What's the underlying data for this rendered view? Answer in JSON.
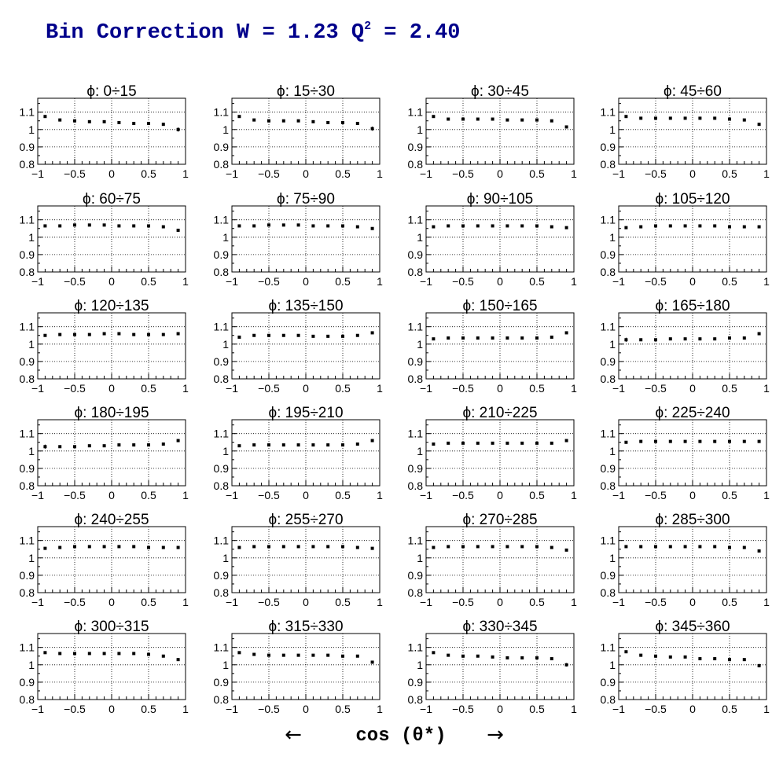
{
  "title": {
    "prefix": "Bin Correction W = 1.23  Q",
    "sup": "2",
    "suffix": " = 2.40"
  },
  "xlabel": {
    "left_arrow": "←",
    "text": "cos (θ*)",
    "right_arrow": "→"
  },
  "colors": {
    "title": "#00008b",
    "markers": "#000000",
    "grid": "#000000",
    "axes": "#000000"
  },
  "chart_data": {
    "type": "scatter",
    "layout": "grid 6 rows x 4 columns",
    "x": [
      -0.9,
      -0.7,
      -0.5,
      -0.3,
      -0.1,
      0.1,
      0.3,
      0.5,
      0.7,
      0.9
    ],
    "xlim": [
      -1,
      1
    ],
    "ylim": [
      0.8,
      1.18
    ],
    "xticks": [
      -1,
      -0.5,
      0,
      0.5,
      1
    ],
    "xtick_labels": [
      "−1",
      "−0.5",
      "0",
      "0.5",
      "1"
    ],
    "yticks": [
      0.8,
      0.9,
      1,
      1.1
    ],
    "ytick_labels": [
      "0.8",
      "0.9",
      "1",
      "1.1"
    ],
    "grid": true,
    "panels": [
      {
        "title": "ϕ:  0÷15",
        "y": [
          1.075,
          1.055,
          1.05,
          1.045,
          1.045,
          1.04,
          1.035,
          1.035,
          1.03,
          1.0
        ],
        "err": [
          0.004,
          0.003,
          0.003,
          0.003,
          0.003,
          0.003,
          0.003,
          0.003,
          0.004,
          0.012
        ]
      },
      {
        "title": "ϕ:  15÷30",
        "y": [
          1.075,
          1.055,
          1.05,
          1.05,
          1.05,
          1.045,
          1.04,
          1.04,
          1.035,
          1.005
        ],
        "err": [
          0.004,
          0.003,
          0.003,
          0.003,
          0.003,
          0.003,
          0.003,
          0.003,
          0.004,
          0.012
        ]
      },
      {
        "title": "ϕ:  30÷45",
        "y": [
          1.075,
          1.06,
          1.06,
          1.06,
          1.06,
          1.055,
          1.055,
          1.055,
          1.05,
          1.015
        ],
        "err": [
          0.004,
          0.003,
          0.003,
          0.003,
          0.003,
          0.003,
          0.003,
          0.003,
          0.004,
          0.008
        ]
      },
      {
        "title": "ϕ:  45÷60",
        "y": [
          1.075,
          1.065,
          1.065,
          1.065,
          1.065,
          1.065,
          1.065,
          1.06,
          1.055,
          1.03
        ],
        "err": [
          0.004,
          0.003,
          0.003,
          0.003,
          0.003,
          0.003,
          0.003,
          0.003,
          0.004,
          0.006
        ]
      },
      {
        "title": "ϕ:  60÷75",
        "y": [
          1.065,
          1.065,
          1.07,
          1.07,
          1.07,
          1.065,
          1.065,
          1.065,
          1.06,
          1.04
        ],
        "err": [
          0.004,
          0.003,
          0.003,
          0.003,
          0.003,
          0.003,
          0.003,
          0.003,
          0.004,
          0.006
        ]
      },
      {
        "title": "ϕ:  75÷90",
        "y": [
          1.065,
          1.065,
          1.07,
          1.07,
          1.07,
          1.065,
          1.065,
          1.065,
          1.06,
          1.05
        ],
        "err": [
          0.004,
          0.003,
          0.003,
          0.003,
          0.003,
          0.003,
          0.003,
          0.003,
          0.004,
          0.006
        ]
      },
      {
        "title": "ϕ:  90÷105",
        "y": [
          1.06,
          1.065,
          1.065,
          1.065,
          1.065,
          1.065,
          1.065,
          1.065,
          1.06,
          1.055
        ],
        "err": [
          0.004,
          0.003,
          0.003,
          0.003,
          0.003,
          0.003,
          0.003,
          0.003,
          0.004,
          0.006
        ]
      },
      {
        "title": "ϕ:  105÷120",
        "y": [
          1.055,
          1.06,
          1.065,
          1.065,
          1.065,
          1.065,
          1.065,
          1.06,
          1.06,
          1.06
        ],
        "err": [
          0.004,
          0.003,
          0.003,
          0.003,
          0.003,
          0.003,
          0.003,
          0.003,
          0.004,
          0.005
        ]
      },
      {
        "title": "ϕ: 120÷135",
        "y": [
          1.05,
          1.055,
          1.055,
          1.055,
          1.06,
          1.06,
          1.055,
          1.055,
          1.055,
          1.06
        ],
        "err": [
          0.004,
          0.003,
          0.003,
          0.003,
          0.003,
          0.003,
          0.003,
          0.003,
          0.004,
          0.005
        ]
      },
      {
        "title": "ϕ: 135÷150",
        "y": [
          1.04,
          1.05,
          1.05,
          1.05,
          1.05,
          1.045,
          1.045,
          1.045,
          1.05,
          1.065
        ],
        "err": [
          0.004,
          0.003,
          0.003,
          0.003,
          0.003,
          0.003,
          0.003,
          0.003,
          0.004,
          0.005
        ]
      },
      {
        "title": "ϕ: 150÷165",
        "y": [
          1.03,
          1.035,
          1.035,
          1.035,
          1.035,
          1.035,
          1.035,
          1.035,
          1.04,
          1.065
        ],
        "err": [
          0.004,
          0.003,
          0.003,
          0.003,
          0.003,
          0.003,
          0.003,
          0.003,
          0.004,
          0.005
        ]
      },
      {
        "title": "ϕ: 165÷180",
        "y": [
          1.025,
          1.025,
          1.025,
          1.03,
          1.03,
          1.03,
          1.03,
          1.035,
          1.035,
          1.06
        ],
        "err": [
          0.012,
          0.003,
          0.003,
          0.003,
          0.003,
          0.003,
          0.003,
          0.003,
          0.004,
          0.005
        ]
      },
      {
        "title": "ϕ: 180÷195",
        "y": [
          1.025,
          1.025,
          1.025,
          1.03,
          1.03,
          1.035,
          1.035,
          1.035,
          1.04,
          1.06
        ],
        "err": [
          0.012,
          0.003,
          0.003,
          0.003,
          0.003,
          0.003,
          0.003,
          0.003,
          0.004,
          0.005
        ]
      },
      {
        "title": "ϕ: 195÷210",
        "y": [
          1.03,
          1.035,
          1.035,
          1.035,
          1.035,
          1.035,
          1.035,
          1.035,
          1.04,
          1.06
        ],
        "err": [
          0.004,
          0.003,
          0.003,
          0.003,
          0.003,
          0.003,
          0.003,
          0.003,
          0.004,
          0.005
        ]
      },
      {
        "title": "ϕ: 210÷225",
        "y": [
          1.04,
          1.045,
          1.045,
          1.045,
          1.045,
          1.045,
          1.045,
          1.045,
          1.045,
          1.06
        ],
        "err": [
          0.004,
          0.003,
          0.003,
          0.003,
          0.003,
          0.003,
          0.003,
          0.003,
          0.004,
          0.005
        ]
      },
      {
        "title": "ϕ: 225÷240",
        "y": [
          1.05,
          1.055,
          1.055,
          1.055,
          1.055,
          1.055,
          1.055,
          1.055,
          1.055,
          1.055
        ],
        "err": [
          0.004,
          0.003,
          0.003,
          0.003,
          0.003,
          0.003,
          0.003,
          0.003,
          0.004,
          0.005
        ]
      },
      {
        "title": "ϕ: 240÷255",
        "y": [
          1.055,
          1.06,
          1.065,
          1.065,
          1.065,
          1.065,
          1.065,
          1.06,
          1.06,
          1.06
        ],
        "err": [
          0.004,
          0.003,
          0.003,
          0.003,
          0.003,
          0.003,
          0.003,
          0.003,
          0.004,
          0.005
        ]
      },
      {
        "title": "ϕ: 255÷270",
        "y": [
          1.06,
          1.065,
          1.065,
          1.065,
          1.065,
          1.065,
          1.065,
          1.065,
          1.06,
          1.055
        ],
        "err": [
          0.004,
          0.003,
          0.003,
          0.003,
          0.003,
          0.003,
          0.003,
          0.003,
          0.004,
          0.005
        ]
      },
      {
        "title": "ϕ: 270÷285",
        "y": [
          1.06,
          1.065,
          1.065,
          1.065,
          1.065,
          1.065,
          1.065,
          1.065,
          1.06,
          1.045
        ],
        "err": [
          0.004,
          0.003,
          0.003,
          0.003,
          0.003,
          0.003,
          0.003,
          0.003,
          0.004,
          0.006
        ]
      },
      {
        "title": "ϕ: 285÷300",
        "y": [
          1.065,
          1.065,
          1.065,
          1.065,
          1.065,
          1.065,
          1.065,
          1.06,
          1.06,
          1.04
        ],
        "err": [
          0.004,
          0.003,
          0.003,
          0.003,
          0.003,
          0.003,
          0.003,
          0.003,
          0.004,
          0.006
        ]
      },
      {
        "title": "ϕ: 300÷315",
        "y": [
          1.07,
          1.065,
          1.065,
          1.065,
          1.065,
          1.065,
          1.065,
          1.06,
          1.05,
          1.03
        ],
        "err": [
          0.004,
          0.003,
          0.003,
          0.003,
          0.003,
          0.003,
          0.003,
          0.003,
          0.004,
          0.006
        ]
      },
      {
        "title": "ϕ: 315÷330",
        "y": [
          1.07,
          1.06,
          1.055,
          1.055,
          1.055,
          1.055,
          1.055,
          1.05,
          1.05,
          1.015
        ],
        "err": [
          0.004,
          0.003,
          0.003,
          0.003,
          0.003,
          0.003,
          0.003,
          0.003,
          0.004,
          0.008
        ]
      },
      {
        "title": "ϕ: 330÷345",
        "y": [
          1.07,
          1.055,
          1.05,
          1.05,
          1.045,
          1.04,
          1.04,
          1.04,
          1.035,
          1.0
        ],
        "err": [
          0.004,
          0.003,
          0.003,
          0.003,
          0.003,
          0.003,
          0.003,
          0.003,
          0.004,
          0.01
        ]
      },
      {
        "title": "ϕ: 345÷360",
        "y": [
          1.075,
          1.055,
          1.05,
          1.045,
          1.045,
          1.035,
          1.035,
          1.03,
          1.03,
          0.995
        ],
        "err": [
          0.004,
          0.003,
          0.003,
          0.003,
          0.003,
          0.003,
          0.003,
          0.003,
          0.004,
          0.01
        ]
      }
    ]
  }
}
